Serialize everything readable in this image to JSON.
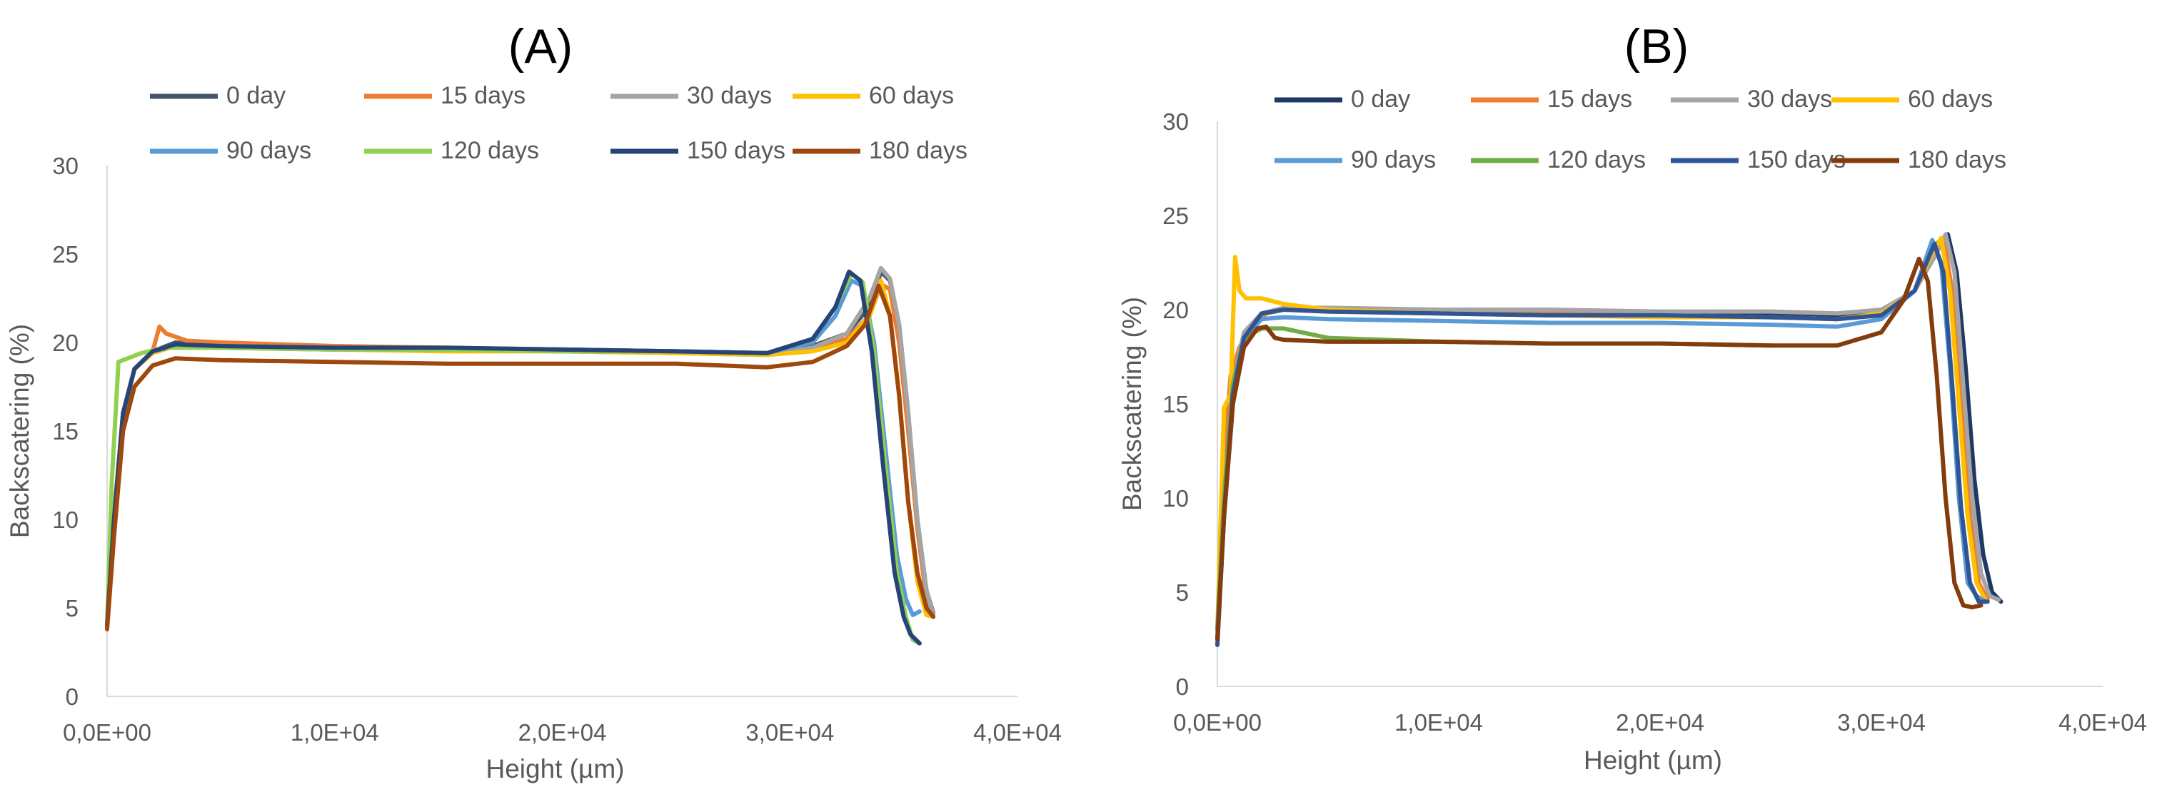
{
  "chart_data": [
    {
      "type": "line",
      "title": "(A)",
      "xlabel": "Height (µm)",
      "ylabel": "Backscatering (%)",
      "xlim": [
        0,
        40000
      ],
      "ylim": [
        0,
        30
      ],
      "x_ticks": [
        0,
        10000,
        20000,
        30000,
        40000
      ],
      "x_tick_labels": [
        "0,0E+00",
        "1,0E+04",
        "2,0E+04",
        "3,0E+04",
        "4,0E+04"
      ],
      "y_ticks": [
        0,
        5,
        10,
        15,
        20,
        25,
        30
      ],
      "y_tick_labels": [
        "0",
        "5",
        "10",
        "15",
        "20",
        "25",
        "30"
      ],
      "grid": false,
      "legend_position": "top",
      "series": [
        {
          "name": "0 day",
          "color": "#44546A",
          "x": [
            0,
            300,
            700,
            1200,
            2000,
            3000,
            5000,
            10000,
            15000,
            20000,
            25000,
            29000,
            31000,
            32500,
            33500,
            34000,
            34400,
            34800,
            35200,
            35600,
            36000,
            36300
          ],
          "y": [
            4,
            10,
            16,
            18.5,
            19.5,
            20,
            19.8,
            19.7,
            19.6,
            19.6,
            19.5,
            19.4,
            19.8,
            20.5,
            22,
            24,
            23.5,
            21,
            16,
            10,
            6,
            4.7
          ]
        },
        {
          "name": "15 days",
          "color": "#ED7D31",
          "x": [
            0,
            300,
            700,
            1200,
            2000,
            2300,
            2600,
            3500,
            5000,
            10000,
            15000,
            20000,
            25000,
            29000,
            31000,
            32500,
            33500,
            34000,
            34400,
            34800,
            35200,
            35600,
            36000,
            36300
          ],
          "y": [
            4,
            10,
            16,
            18.5,
            19.5,
            20.9,
            20.5,
            20.1,
            20,
            19.8,
            19.7,
            19.6,
            19.5,
            19.3,
            19.7,
            20.2,
            21.5,
            23.3,
            23,
            20,
            15,
            9.5,
            5.5,
            4.6
          ]
        },
        {
          "name": "30 days",
          "color": "#A5A5A5",
          "x": [
            0,
            300,
            700,
            1200,
            2000,
            3000,
            5000,
            10000,
            15000,
            20000,
            25000,
            29000,
            31000,
            32500,
            33500,
            34000,
            34400,
            34800,
            35200,
            35600,
            36000,
            36300
          ],
          "y": [
            4,
            10,
            16,
            18.5,
            19.5,
            19.9,
            19.8,
            19.7,
            19.6,
            19.5,
            19.4,
            19.3,
            19.7,
            20.5,
            22.5,
            24.2,
            23.6,
            21,
            16,
            10,
            6,
            4.6
          ]
        },
        {
          "name": "60 days",
          "color": "#FFC000",
          "x": [
            0,
            300,
            700,
            1200,
            2000,
            3000,
            5000,
            10000,
            15000,
            20000,
            25000,
            29000,
            31000,
            32500,
            33500,
            34000,
            34400,
            34800,
            35200,
            35600,
            36000,
            36300
          ],
          "y": [
            4,
            10,
            16,
            18.5,
            19.4,
            19.8,
            19.7,
            19.6,
            19.5,
            19.5,
            19.4,
            19.3,
            19.5,
            20,
            21.5,
            23.5,
            21.5,
            17,
            11,
            6.5,
            4.6,
            4.5
          ]
        },
        {
          "name": "90 days",
          "color": "#5B9BD5",
          "x": [
            0,
            300,
            700,
            1200,
            2000,
            3000,
            5000,
            10000,
            15000,
            20000,
            25000,
            29000,
            31000,
            32000,
            32700,
            33200,
            33700,
            34200,
            34700,
            35100,
            35400,
            35700
          ],
          "y": [
            4,
            10,
            16,
            18.5,
            19.5,
            19.8,
            19.7,
            19.6,
            19.6,
            19.5,
            19.5,
            19.4,
            20,
            21.5,
            23.5,
            23.2,
            20,
            14,
            8,
            5.5,
            4.6,
            4.8
          ]
        },
        {
          "name": "120 days",
          "color": "#92D050",
          "x": [
            0,
            200,
            500,
            900,
            1500,
            2500,
            5000,
            10000,
            15000,
            20000,
            25000,
            29000,
            31000,
            32000,
            32700,
            33200,
            33700,
            34200,
            34700,
            35100,
            35400,
            35700
          ],
          "y": [
            4,
            12,
            18.9,
            19.1,
            19.4,
            19.7,
            19.7,
            19.6,
            19.6,
            19.5,
            19.5,
            19.4,
            20.2,
            22,
            23.9,
            23.4,
            19.5,
            13,
            7,
            4.5,
            3.2,
            3
          ]
        },
        {
          "name": "150 days",
          "color": "#264478",
          "x": [
            0,
            300,
            700,
            1200,
            2000,
            3000,
            5000,
            10000,
            15000,
            20000,
            25000,
            29000,
            31000,
            32000,
            32600,
            33100,
            33600,
            34100,
            34600,
            35000,
            35300,
            35700
          ],
          "y": [
            4,
            10,
            16,
            18.5,
            19.5,
            19.9,
            19.8,
            19.7,
            19.7,
            19.6,
            19.5,
            19.4,
            20.2,
            22,
            24,
            23.5,
            19.5,
            13,
            7,
            4.5,
            3.5,
            3
          ]
        },
        {
          "name": "180 days",
          "color": "#9E480E",
          "x": [
            0,
            300,
            700,
            1200,
            2000,
            3000,
            5000,
            10000,
            15000,
            20000,
            25000,
            29000,
            31000,
            32500,
            33300,
            33900,
            34400,
            34800,
            35200,
            35600,
            36000,
            36300
          ],
          "y": [
            3.8,
            9,
            15,
            17.5,
            18.7,
            19.1,
            19,
            18.9,
            18.8,
            18.8,
            18.8,
            18.6,
            18.9,
            19.8,
            21,
            23.2,
            21.5,
            17,
            11,
            7,
            5,
            4.5
          ]
        }
      ]
    },
    {
      "type": "line",
      "title": "(B)",
      "xlabel": "Height (µm)",
      "ylabel": "Backscatering (%)",
      "xlim": [
        0,
        40000
      ],
      "ylim": [
        0,
        30
      ],
      "x_ticks": [
        0,
        10000,
        20000,
        30000,
        40000
      ],
      "x_tick_labels": [
        "0,0E+00",
        "1,0E+04",
        "2,0E+04",
        "3,0E+04",
        "4,0E+04"
      ],
      "y_ticks": [
        0,
        5,
        10,
        15,
        20,
        25,
        30
      ],
      "y_tick_labels": [
        "0",
        "5",
        "10",
        "15",
        "20",
        "25",
        "30"
      ],
      "grid": false,
      "legend_position": "top",
      "series": [
        {
          "name": "0 day",
          "color": "#203864",
          "x": [
            0,
            300,
            700,
            1200,
            2000,
            3000,
            5000,
            10000,
            15000,
            20000,
            25000,
            28000,
            30000,
            31500,
            32500,
            33000,
            33400,
            33800,
            34200,
            34600,
            35000,
            35400
          ],
          "y": [
            2.5,
            9,
            15,
            18.5,
            19.8,
            20,
            20,
            19.9,
            19.9,
            19.8,
            19.7,
            19.6,
            19.8,
            21,
            23.5,
            24,
            22,
            17,
            11,
            7,
            5,
            4.5
          ]
        },
        {
          "name": "15 days",
          "color": "#ED7D31",
          "x": [
            0,
            300,
            600,
            1000,
            1500,
            2200,
            3000,
            5000,
            10000,
            15000,
            20000,
            25000,
            28000,
            30000,
            31500,
            32400,
            32800,
            33200,
            33600,
            34000,
            34400,
            34800
          ],
          "y": [
            3,
            12,
            16.5,
            18,
            19,
            19.8,
            20,
            19.9,
            19.8,
            19.8,
            19.7,
            19.6,
            19.5,
            19.8,
            21,
            23,
            23.8,
            21,
            15,
            9,
            5.5,
            4.6
          ]
        },
        {
          "name": "30 days",
          "color": "#A5A5A5",
          "x": [
            0,
            300,
            700,
            1200,
            2000,
            3000,
            5000,
            10000,
            15000,
            20000,
            25000,
            28000,
            30000,
            31500,
            32500,
            32900,
            33300,
            33700,
            34100,
            34500,
            34900,
            35300
          ],
          "y": [
            3,
            10,
            16,
            18.8,
            19.8,
            20.1,
            20.1,
            20,
            20,
            19.9,
            19.9,
            19.8,
            20,
            21,
            23,
            24,
            22,
            16,
            10,
            6,
            4.8,
            4.6
          ]
        },
        {
          "name": "60 days",
          "color": "#FFC000",
          "x": [
            0,
            300,
            600,
            800,
            1000,
            1300,
            2000,
            3000,
            5000,
            10000,
            15000,
            20000,
            25000,
            28000,
            30000,
            31500,
            32300,
            32700,
            33100,
            33500,
            33900,
            34300,
            34700
          ],
          "y": [
            3,
            14.8,
            15.5,
            22.8,
            21,
            20.6,
            20.6,
            20.3,
            20,
            19.8,
            19.7,
            19.6,
            19.6,
            19.5,
            19.8,
            21,
            23,
            23.8,
            21,
            15,
            9,
            5.5,
            4.6
          ]
        },
        {
          "name": "90 days",
          "color": "#5B9BD5",
          "x": [
            0,
            300,
            700,
            1200,
            2000,
            3000,
            5000,
            10000,
            15000,
            20000,
            25000,
            28000,
            30000,
            31500,
            32300,
            32700,
            33100,
            33500,
            33900,
            34300,
            34700
          ],
          "y": [
            3,
            10,
            16,
            18.5,
            19.5,
            19.6,
            19.5,
            19.4,
            19.3,
            19.3,
            19.2,
            19.1,
            19.5,
            21,
            23.7,
            22.5,
            17,
            10,
            5.5,
            4.8,
            4.5
          ]
        },
        {
          "name": "120 days",
          "color": "#70AD47",
          "x": [
            0,
            300,
            700,
            1200,
            2000,
            3000,
            5000,
            10000,
            15000,
            20000,
            25000
          ],
          "y": [
            2.5,
            10,
            16,
            18.5,
            19,
            19,
            18.5,
            18.3,
            18.2,
            18.2,
            18.1
          ]
        },
        {
          "name": "150 days",
          "color": "#2F5597",
          "x": [
            0,
            300,
            700,
            1200,
            2000,
            3000,
            5000,
            10000,
            15000,
            20000,
            25000,
            28000,
            30000,
            31500,
            32400,
            32800,
            33200,
            33600,
            34000,
            34400,
            34800
          ],
          "y": [
            2.2,
            9,
            15.5,
            18.5,
            19.8,
            20,
            19.9,
            19.8,
            19.7,
            19.7,
            19.6,
            19.5,
            19.7,
            21,
            23.5,
            22,
            16,
            9.5,
            5.5,
            4.5,
            4.5
          ]
        },
        {
          "name": "180 days",
          "color": "#843C0C",
          "x": [
            0,
            300,
            700,
            1200,
            1800,
            2200,
            2600,
            3000,
            5000,
            10000,
            15000,
            20000,
            25000,
            28000,
            30000,
            31000,
            31700,
            32100,
            32500,
            32900,
            33300,
            33700,
            34100,
            34500
          ],
          "y": [
            2.5,
            9,
            15,
            18,
            19,
            19.1,
            18.5,
            18.4,
            18.3,
            18.3,
            18.2,
            18.2,
            18.1,
            18.1,
            18.8,
            20.5,
            22.7,
            21.5,
            16.5,
            10,
            5.5,
            4.3,
            4.2,
            4.3
          ]
        }
      ]
    }
  ]
}
